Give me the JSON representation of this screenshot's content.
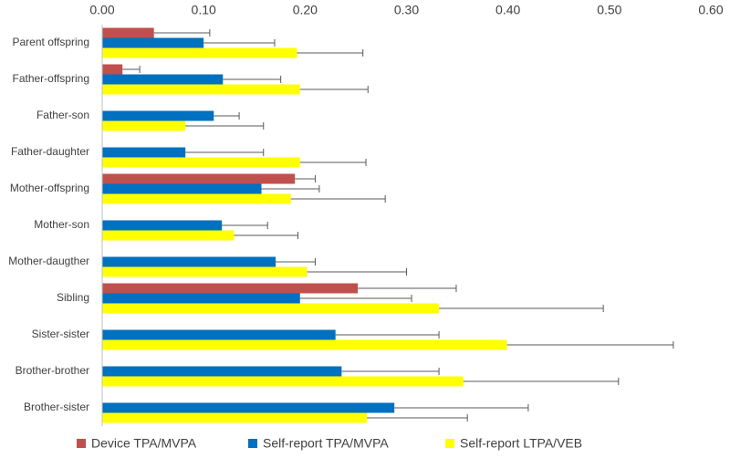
{
  "chart_data": {
    "type": "hbar",
    "categories": [
      "Parent offspring",
      "Father-offspring",
      "Father-son",
      "Father-daughter",
      "Mother-offspring",
      "Mother-son",
      "Mother-daugther",
      "Sibling",
      "Sister-sister",
      "Brother-brother",
      "Brother-sister"
    ],
    "series": [
      {
        "name": "Device TPA/MVPA",
        "color": "#c0504d",
        "values": [
          0.051,
          0.02,
          null,
          null,
          0.19,
          null,
          null,
          0.252,
          null,
          null,
          null
        ],
        "errors": [
          0.055,
          0.017,
          null,
          null,
          0.02,
          null,
          null,
          0.097,
          null,
          null,
          null
        ]
      },
      {
        "name": "Self-report TPA/MVPA",
        "color": "#0070c0",
        "values": [
          0.1,
          0.119,
          0.11,
          0.082,
          0.157,
          0.118,
          0.171,
          0.195,
          0.23,
          0.236,
          0.288
        ],
        "errors": [
          0.07,
          0.057,
          0.025,
          0.077,
          0.057,
          0.045,
          0.039,
          0.11,
          0.102,
          0.096,
          0.132
        ]
      },
      {
        "name": "Self-report LTPA/VEB",
        "color": "#ffff00",
        "values": [
          0.192,
          0.195,
          0.082,
          0.195,
          0.186,
          0.13,
          0.202,
          0.332,
          0.399,
          0.356,
          0.261
        ],
        "errors": [
          0.065,
          0.067,
          0.077,
          0.065,
          0.093,
          0.063,
          0.098,
          0.162,
          0.164,
          0.153,
          0.099
        ]
      }
    ],
    "xlim": [
      0,
      0.6
    ],
    "xticks": [
      {
        "value": 0,
        "label": "0.00"
      },
      {
        "value": 0.1,
        "label": "0.10"
      },
      {
        "value": 0.2,
        "label": "0.20"
      },
      {
        "value": 0.3,
        "label": "0.30"
      },
      {
        "value": 0.4,
        "label": "0.40"
      },
      {
        "value": 0.5,
        "label": "0.50"
      },
      {
        "value": 0.6,
        "label": "0.60"
      }
    ],
    "grid": false,
    "legend": "bottom"
  }
}
